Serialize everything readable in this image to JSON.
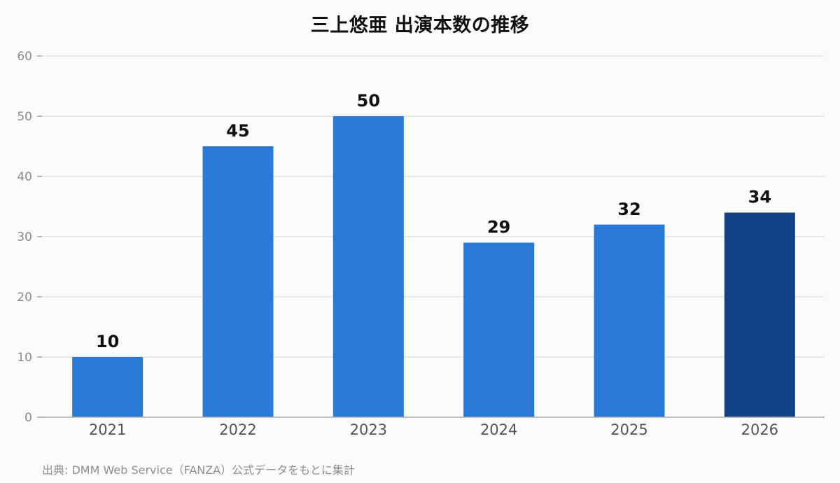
{
  "chart_data": {
    "type": "bar",
    "title": "三上悠亜 出演本数の推移",
    "categories": [
      "2021",
      "2022",
      "2023",
      "2024",
      "2025",
      "2026"
    ],
    "values": [
      10,
      45,
      50,
      29,
      32,
      34
    ],
    "bar_colors": [
      "#2b79d6",
      "#2b79d6",
      "#2b79d6",
      "#2b79d6",
      "#2b79d6",
      "#104285"
    ],
    "ylim": [
      0,
      60
    ],
    "yticks": [
      0,
      10,
      20,
      30,
      40,
      50,
      60
    ],
    "grid": true,
    "xlabel": "",
    "ylabel": ""
  },
  "footer": {
    "source": "出典: DMM Web Service（FANZA）公式データをもとに集計"
  }
}
